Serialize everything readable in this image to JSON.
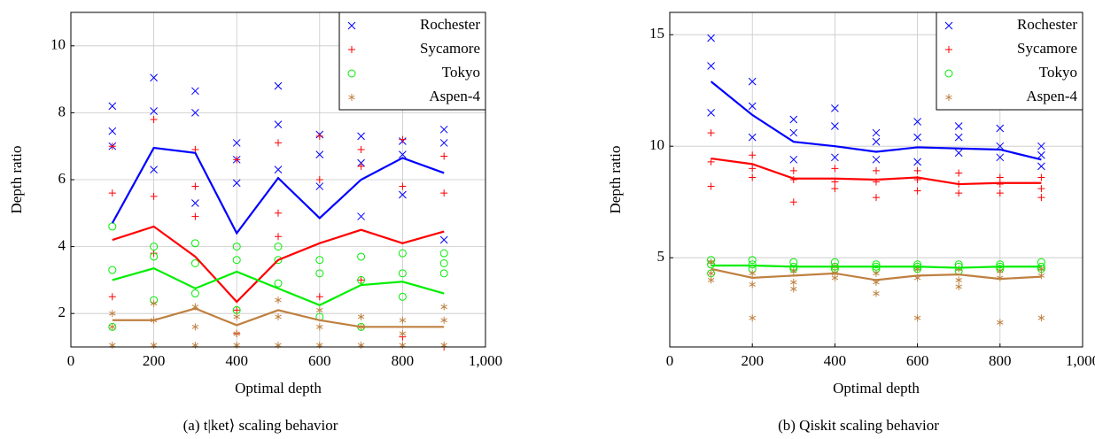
{
  "chart_data": [
    {
      "type": "line",
      "caption": "(a) t|ket⟩ scaling behavior",
      "xlabel": "Optimal depth",
      "ylabel": "Depth ratio",
      "xlim": [
        0,
        1000
      ],
      "xticks": [
        0,
        200,
        400,
        600,
        800,
        {
          "value": 1000,
          "label": "1,000"
        }
      ],
      "ylim": [
        1,
        11
      ],
      "yticks": [
        2,
        4,
        6,
        8,
        10
      ],
      "grid": true,
      "legend": "top-right",
      "series": [
        {
          "name": "Rochester",
          "color": "#0000ff",
          "marker": "x",
          "x": [
            100,
            200,
            300,
            400,
            500,
            600,
            700,
            800,
            900
          ],
          "values": [
            4.7,
            6.95,
            6.8,
            4.4,
            6.05,
            4.85,
            6.0,
            6.65,
            6.2
          ],
          "points": [
            [
              100,
              8.2
            ],
            [
              100,
              7.45
            ],
            [
              100,
              7.0
            ],
            [
              200,
              9.05
            ],
            [
              200,
              8.05
            ],
            [
              200,
              6.3
            ],
            [
              300,
              8.65
            ],
            [
              300,
              8.0
            ],
            [
              300,
              5.3
            ],
            [
              400,
              7.1
            ],
            [
              400,
              6.6
            ],
            [
              400,
              5.9
            ],
            [
              500,
              8.8
            ],
            [
              500,
              7.65
            ],
            [
              500,
              6.3
            ],
            [
              600,
              7.35
            ],
            [
              600,
              6.75
            ],
            [
              600,
              5.8
            ],
            [
              700,
              7.3
            ],
            [
              700,
              6.5
            ],
            [
              700,
              4.9
            ],
            [
              800,
              7.15
            ],
            [
              800,
              6.75
            ],
            [
              800,
              5.55
            ],
            [
              900,
              7.5
            ],
            [
              900,
              7.1
            ],
            [
              900,
              4.2
            ]
          ]
        },
        {
          "name": "Sycamore",
          "color": "#ff0000",
          "marker": "+",
          "x": [
            100,
            200,
            300,
            400,
            500,
            600,
            700,
            800,
            900
          ],
          "values": [
            4.2,
            4.6,
            3.7,
            2.35,
            3.6,
            4.1,
            4.5,
            4.1,
            4.45
          ],
          "points": [
            [
              100,
              7.0
            ],
            [
              100,
              5.6
            ],
            [
              100,
              2.5
            ],
            [
              200,
              7.8
            ],
            [
              200,
              5.5
            ],
            [
              200,
              3.8
            ],
            [
              300,
              6.9
            ],
            [
              300,
              5.8
            ],
            [
              300,
              4.9
            ],
            [
              400,
              6.6
            ],
            [
              400,
              2.1
            ],
            [
              400,
              1.4
            ],
            [
              500,
              7.1
            ],
            [
              500,
              5.0
            ],
            [
              500,
              4.3
            ],
            [
              600,
              7.3
            ],
            [
              600,
              6.0
            ],
            [
              600,
              2.5
            ],
            [
              700,
              6.9
            ],
            [
              700,
              6.4
            ],
            [
              700,
              3.0
            ],
            [
              800,
              7.2
            ],
            [
              800,
              5.8
            ],
            [
              800,
              1.3
            ],
            [
              900,
              6.7
            ],
            [
              900,
              5.6
            ],
            [
              900,
              1.0
            ]
          ]
        },
        {
          "name": "Tokyo",
          "color": "#00ee00",
          "marker": "o",
          "x": [
            100,
            200,
            300,
            400,
            500,
            600,
            700,
            800,
            900
          ],
          "values": [
            3.0,
            3.35,
            2.75,
            3.25,
            2.75,
            2.25,
            2.85,
            2.95,
            2.6
          ],
          "points": [
            [
              100,
              4.6
            ],
            [
              100,
              3.3
            ],
            [
              100,
              1.6
            ],
            [
              200,
              4.0
            ],
            [
              200,
              3.7
            ],
            [
              200,
              2.4
            ],
            [
              300,
              4.1
            ],
            [
              300,
              3.5
            ],
            [
              300,
              2.6
            ],
            [
              400,
              4.0
            ],
            [
              400,
              3.6
            ],
            [
              400,
              2.1
            ],
            [
              500,
              4.0
            ],
            [
              500,
              3.6
            ],
            [
              500,
              2.9
            ],
            [
              600,
              3.6
            ],
            [
              600,
              3.2
            ],
            [
              600,
              1.9
            ],
            [
              700,
              3.7
            ],
            [
              700,
              3.0
            ],
            [
              700,
              1.6
            ],
            [
              800,
              3.8
            ],
            [
              800,
              3.2
            ],
            [
              800,
              2.5
            ],
            [
              900,
              3.8
            ],
            [
              900,
              3.5
            ],
            [
              900,
              3.2
            ]
          ]
        },
        {
          "name": "Aspen-4",
          "color": "#bf8040",
          "marker": "*",
          "x": [
            100,
            200,
            300,
            400,
            500,
            600,
            700,
            800,
            900
          ],
          "values": [
            1.8,
            1.8,
            2.15,
            1.65,
            2.1,
            1.8,
            1.6,
            1.6,
            1.6
          ],
          "points": [
            [
              100,
              2.0
            ],
            [
              100,
              1.6
            ],
            [
              100,
              1.05
            ],
            [
              200,
              2.3
            ],
            [
              200,
              1.8
            ],
            [
              200,
              1.05
            ],
            [
              300,
              2.2
            ],
            [
              300,
              1.6
            ],
            [
              300,
              1.05
            ],
            [
              400,
              1.9
            ],
            [
              400,
              1.4
            ],
            [
              400,
              1.05
            ],
            [
              500,
              2.4
            ],
            [
              500,
              1.9
            ],
            [
              500,
              1.05
            ],
            [
              600,
              2.1
            ],
            [
              600,
              1.6
            ],
            [
              600,
              1.05
            ],
            [
              700,
              1.9
            ],
            [
              700,
              1.6
            ],
            [
              700,
              1.05
            ],
            [
              800,
              1.8
            ],
            [
              800,
              1.4
            ],
            [
              800,
              1.05
            ],
            [
              900,
              2.2
            ],
            [
              900,
              1.8
            ],
            [
              900,
              1.05
            ]
          ]
        }
      ]
    },
    {
      "type": "line",
      "caption": "(b) Qiskit scaling behavior",
      "xlabel": "Optimal depth",
      "ylabel": "Depth ratio",
      "xlim": [
        0,
        1000
      ],
      "xticks": [
        0,
        200,
        400,
        600,
        800,
        {
          "value": 1000,
          "label": "1,000"
        }
      ],
      "ylim": [
        1,
        16
      ],
      "yticks": [
        5,
        10,
        15
      ],
      "grid": true,
      "legend": "top-right",
      "series": [
        {
          "name": "Rochester",
          "color": "#0000ff",
          "marker": "x",
          "x": [
            100,
            200,
            300,
            400,
            500,
            600,
            700,
            800,
            900
          ],
          "values": [
            12.9,
            11.4,
            10.2,
            10.0,
            9.75,
            9.95,
            9.9,
            9.85,
            9.4
          ],
          "points": [
            [
              100,
              14.85
            ],
            [
              100,
              13.6
            ],
            [
              100,
              11.5
            ],
            [
              200,
              12.9
            ],
            [
              200,
              11.8
            ],
            [
              200,
              10.4
            ],
            [
              300,
              11.2
            ],
            [
              300,
              10.6
            ],
            [
              300,
              9.4
            ],
            [
              400,
              11.7
            ],
            [
              400,
              10.9
            ],
            [
              400,
              9.5
            ],
            [
              500,
              10.6
            ],
            [
              500,
              10.2
            ],
            [
              500,
              9.4
            ],
            [
              600,
              11.1
            ],
            [
              600,
              10.4
            ],
            [
              600,
              9.3
            ],
            [
              700,
              10.9
            ],
            [
              700,
              10.4
            ],
            [
              700,
              9.7
            ],
            [
              800,
              10.8
            ],
            [
              800,
              10.0
            ],
            [
              800,
              9.5
            ],
            [
              900,
              10.0
            ],
            [
              900,
              9.6
            ],
            [
              900,
              9.1
            ]
          ]
        },
        {
          "name": "Sycamore",
          "color": "#ff0000",
          "marker": "+",
          "x": [
            100,
            200,
            300,
            400,
            500,
            600,
            700,
            800,
            900
          ],
          "values": [
            9.45,
            9.2,
            8.55,
            8.55,
            8.5,
            8.6,
            8.3,
            8.35,
            8.35
          ],
          "points": [
            [
              100,
              10.6
            ],
            [
              100,
              9.3
            ],
            [
              100,
              8.2
            ],
            [
              200,
              9.6
            ],
            [
              200,
              9.0
            ],
            [
              200,
              8.6
            ],
            [
              300,
              8.9
            ],
            [
              300,
              8.5
            ],
            [
              300,
              7.5
            ],
            [
              400,
              9.0
            ],
            [
              400,
              8.4
            ],
            [
              400,
              8.1
            ],
            [
              500,
              8.9
            ],
            [
              500,
              8.4
            ],
            [
              500,
              7.7
            ],
            [
              600,
              8.9
            ],
            [
              600,
              8.5
            ],
            [
              600,
              8.0
            ],
            [
              700,
              8.8
            ],
            [
              700,
              8.3
            ],
            [
              700,
              7.9
            ],
            [
              800,
              8.6
            ],
            [
              800,
              8.3
            ],
            [
              800,
              7.9
            ],
            [
              900,
              8.6
            ],
            [
              900,
              8.1
            ],
            [
              900,
              7.7
            ]
          ]
        },
        {
          "name": "Tokyo",
          "color": "#00ee00",
          "marker": "o",
          "x": [
            100,
            200,
            300,
            400,
            500,
            600,
            700,
            800,
            900
          ],
          "values": [
            4.65,
            4.65,
            4.6,
            4.6,
            4.6,
            4.6,
            4.55,
            4.6,
            4.6
          ],
          "points": [
            [
              100,
              4.9
            ],
            [
              100,
              4.7
            ],
            [
              100,
              4.3
            ],
            [
              200,
              4.9
            ],
            [
              200,
              4.7
            ],
            [
              200,
              4.5
            ],
            [
              300,
              4.8
            ],
            [
              300,
              4.6
            ],
            [
              300,
              4.5
            ],
            [
              400,
              4.8
            ],
            [
              400,
              4.6
            ],
            [
              400,
              4.5
            ],
            [
              500,
              4.7
            ],
            [
              500,
              4.6
            ],
            [
              500,
              4.5
            ],
            [
              600,
              4.7
            ],
            [
              600,
              4.6
            ],
            [
              600,
              4.5
            ],
            [
              700,
              4.7
            ],
            [
              700,
              4.6
            ],
            [
              700,
              4.4
            ],
            [
              800,
              4.7
            ],
            [
              800,
              4.6
            ],
            [
              800,
              4.5
            ],
            [
              900,
              4.8
            ],
            [
              900,
              4.6
            ],
            [
              900,
              4.5
            ]
          ]
        },
        {
          "name": "Aspen-4",
          "color": "#bf8040",
          "marker": "*",
          "x": [
            100,
            200,
            300,
            400,
            500,
            600,
            700,
            800,
            900
          ],
          "values": [
            4.5,
            4.1,
            4.2,
            4.3,
            4.0,
            4.2,
            4.25,
            4.05,
            4.15
          ],
          "points": [
            [
              100,
              4.8
            ],
            [
              100,
              4.3
            ],
            [
              100,
              4.0
            ],
            [
              200,
              4.3
            ],
            [
              200,
              3.8
            ],
            [
              200,
              2.3
            ],
            [
              300,
              4.4
            ],
            [
              300,
              3.9
            ],
            [
              300,
              3.6
            ],
            [
              400,
              4.6
            ],
            [
              400,
              4.3
            ],
            [
              400,
              4.1
            ],
            [
              500,
              4.3
            ],
            [
              500,
              3.9
            ],
            [
              500,
              3.4
            ],
            [
              600,
              4.5
            ],
            [
              600,
              4.1
            ],
            [
              600,
              2.3
            ],
            [
              700,
              4.5
            ],
            [
              700,
              4.0
            ],
            [
              700,
              3.7
            ],
            [
              800,
              4.4
            ],
            [
              800,
              4.1
            ],
            [
              800,
              2.1
            ],
            [
              900,
              4.5
            ],
            [
              900,
              4.2
            ],
            [
              900,
              2.3
            ]
          ]
        }
      ]
    }
  ]
}
